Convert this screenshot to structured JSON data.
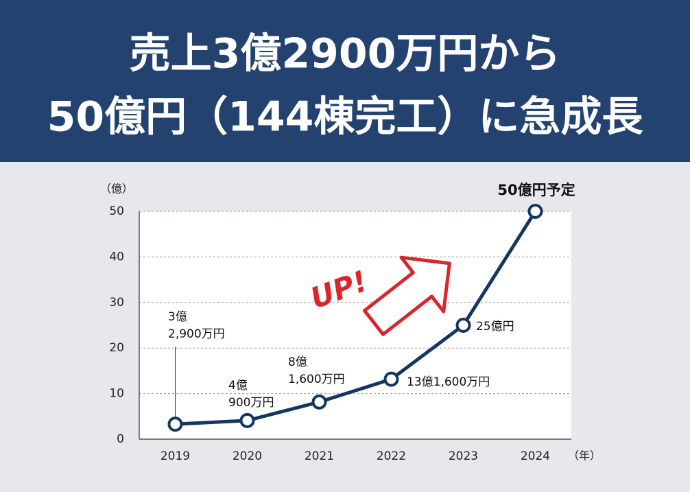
{
  "chart_data": {
    "type": "line",
    "title_lines": [
      "売上3億2900万円から",
      "50億円（144棟完工）に急成長"
    ],
    "y_unit": "（億）",
    "x_unit": "（年）",
    "annotation": "UP!",
    "categories": [
      "2019",
      "2020",
      "2021",
      "2022",
      "2023",
      "2024"
    ],
    "series": [
      {
        "color": "#14365f",
        "values": [
          3.29,
          4.09,
          8.16,
          13.16,
          25,
          50
        ],
        "value_labels": [
          [
            "3億",
            "2,900万円"
          ],
          [
            "4億",
            "900万円"
          ],
          [
            "8億",
            "1,600万円"
          ],
          [
            "13億1,600万円"
          ],
          [
            "25億円"
          ],
          [
            "50億円予定"
          ]
        ]
      }
    ],
    "ylim": [
      0,
      50
    ],
    "yticks": [
      0,
      10,
      20,
      30,
      40,
      50
    ],
    "grid": true
  }
}
